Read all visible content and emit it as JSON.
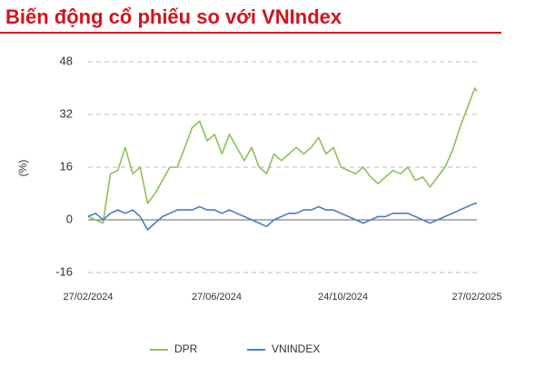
{
  "chart_data": {
    "type": "line",
    "title": "Biến động cổ phiếu so với VNIndex",
    "ylabel": "(%)",
    "x": [
      "27/02/2024",
      "05/03/2024",
      "12/03/2024",
      "19/03/2024",
      "26/03/2024",
      "02/04/2024",
      "09/04/2024",
      "16/04/2024",
      "23/04/2024",
      "30/04/2024",
      "07/05/2024",
      "14/05/2024",
      "21/05/2024",
      "28/05/2024",
      "04/06/2024",
      "11/06/2024",
      "18/06/2024",
      "25/06/2024",
      "02/07/2024",
      "09/07/2024",
      "16/07/2024",
      "23/07/2024",
      "30/07/2024",
      "06/08/2024",
      "13/08/2024",
      "20/08/2024",
      "27/08/2024",
      "03/09/2024",
      "10/09/2024",
      "17/09/2024",
      "24/09/2024",
      "01/10/2024",
      "08/10/2024",
      "15/10/2024",
      "22/10/2024",
      "29/10/2024",
      "05/11/2024",
      "12/11/2024",
      "19/11/2024",
      "26/11/2024",
      "03/12/2024",
      "10/12/2024",
      "17/12/2024",
      "24/12/2024",
      "31/12/2024",
      "07/01/2025",
      "14/01/2025",
      "21/01/2025",
      "28/01/2025",
      "04/02/2025",
      "11/02/2025",
      "18/02/2025",
      "25/02/2025",
      "27/02/2025"
    ],
    "series": [
      {
        "name": "DPR",
        "color": "#8fbf5a",
        "values": [
          1,
          0,
          -1,
          14,
          15,
          22,
          14,
          16,
          5,
          8,
          12,
          16,
          16,
          22,
          28,
          30,
          24,
          26,
          20,
          26,
          22,
          18,
          22,
          16,
          14,
          20,
          18,
          20,
          22,
          20,
          22,
          25,
          20,
          22,
          16,
          15,
          14,
          16,
          13,
          11,
          13,
          15,
          14,
          16,
          12,
          13,
          10,
          13,
          16,
          21,
          28,
          34,
          40,
          39
        ]
      },
      {
        "name": "VNINDEX",
        "color": "#4a7fc1",
        "values": [
          1,
          2,
          0,
          2,
          3,
          2,
          3,
          1,
          -3,
          -1,
          1,
          2,
          3,
          3,
          3,
          4,
          3,
          3,
          2,
          3,
          2,
          1,
          0,
          -1,
          -2,
          0,
          1,
          2,
          2,
          3,
          3,
          4,
          3,
          3,
          2,
          1,
          0,
          -1,
          0,
          1,
          1,
          2,
          2,
          2,
          1,
          0,
          -1,
          0,
          1,
          2,
          3,
          4,
          5,
          5
        ]
      }
    ],
    "xlim": [
      "27/02/2024",
      "27/02/2025"
    ],
    "xticks": [
      "27/02/2024",
      "27/06/2024",
      "24/10/2024",
      "27/02/2025"
    ],
    "ylim": [
      -18,
      50
    ],
    "yticks": [
      -16,
      0,
      16,
      32,
      48
    ],
    "grid": true,
    "legend": "bottom"
  }
}
